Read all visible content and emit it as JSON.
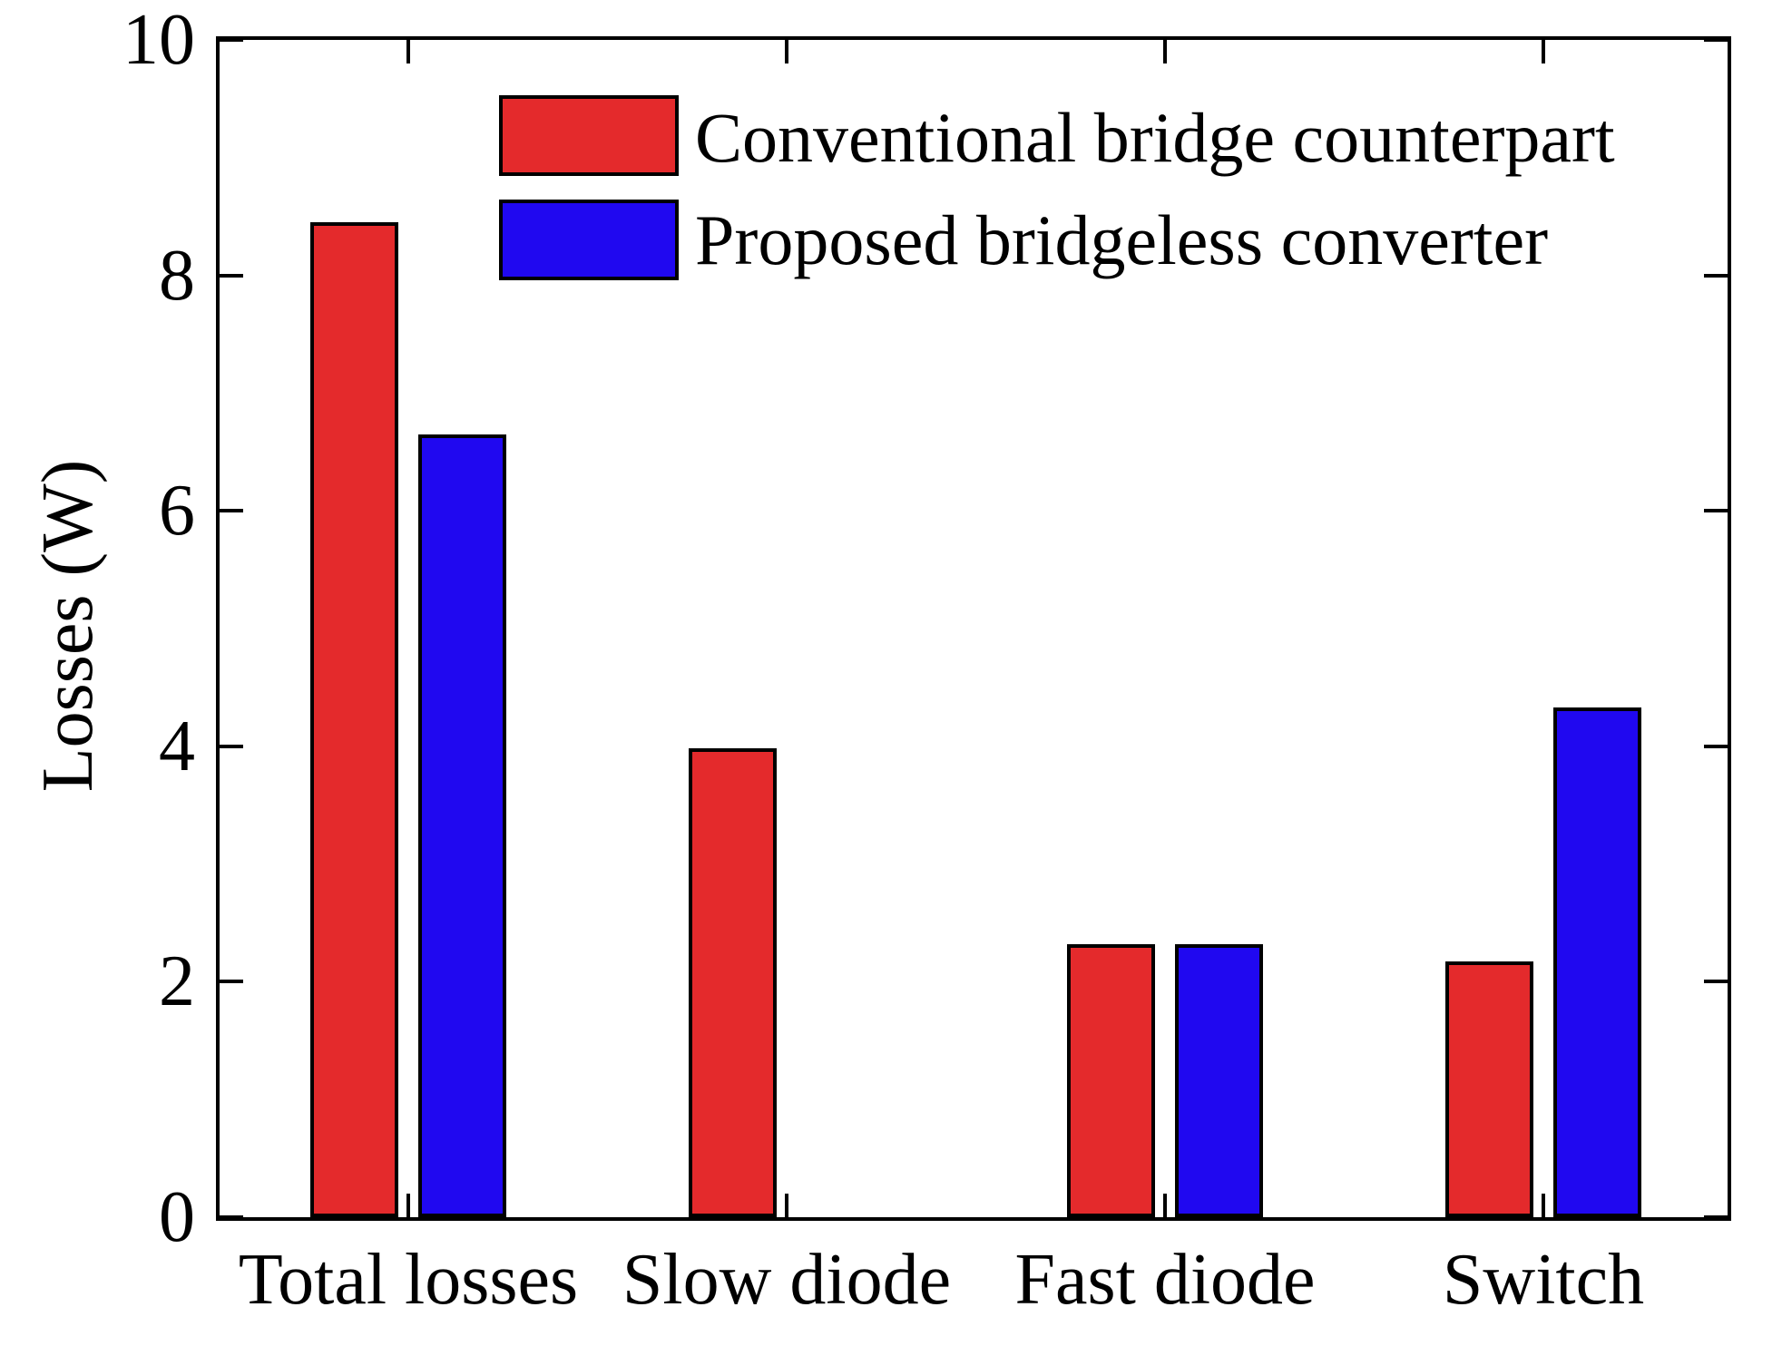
{
  "chart_data": {
    "type": "bar",
    "title": "",
    "xlabel": "",
    "ylabel": "Losses (W)",
    "categories": [
      "Total losses",
      "Slow diode",
      "Fast diode",
      "Switch"
    ],
    "series": [
      {
        "name": "Conventional bridge counterpart",
        "color": "#e42a2c",
        "values": [
          8.45,
          3.98,
          2.32,
          2.17
        ]
      },
      {
        "name": "Proposed bridgeless converter",
        "color": "#2008f0",
        "values": [
          6.65,
          null,
          2.32,
          4.33
        ]
      }
    ],
    "ylim": [
      0,
      10
    ],
    "yticks": [
      0,
      2,
      4,
      6,
      8,
      10
    ],
    "grid": false,
    "legend_position": "upper-left-inside",
    "frame": true
  },
  "colors": {
    "axis": "#000000",
    "background": "#ffffff",
    "bar_edge": "#000000"
  }
}
